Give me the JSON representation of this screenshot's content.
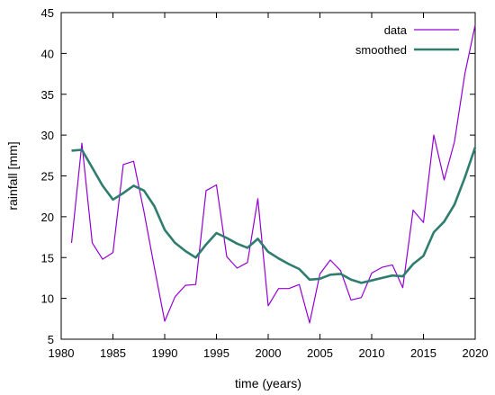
{
  "chart_data": {
    "type": "line",
    "title": "",
    "xlabel": "time (years)",
    "ylabel": "rainfall [mm]",
    "xlim": [
      1980,
      2020
    ],
    "ylim": [
      5,
      45
    ],
    "xticks": [
      1980,
      1985,
      1990,
      1995,
      2000,
      2005,
      2010,
      2015,
      2020
    ],
    "yticks": [
      5,
      10,
      15,
      20,
      25,
      30,
      35,
      40,
      45
    ],
    "grid": false,
    "legend_position": "top-right",
    "x": [
      1981,
      1982,
      1983,
      1984,
      1985,
      1986,
      1987,
      1988,
      1989,
      1990,
      1991,
      1992,
      1993,
      1994,
      1995,
      1996,
      1997,
      1998,
      1999,
      2000,
      2001,
      2002,
      2003,
      2004,
      2005,
      2006,
      2007,
      2008,
      2009,
      2010,
      2011,
      2012,
      2013,
      2014,
      2015,
      2016,
      2017,
      2018,
      2019,
      2020
    ],
    "series": [
      {
        "name": "data",
        "color": "#9400d3",
        "values": [
          16.8,
          29.0,
          16.8,
          14.8,
          15.6,
          26.4,
          26.8,
          20.6,
          13.8,
          7.2,
          10.2,
          11.6,
          11.7,
          23.2,
          23.9,
          15.1,
          13.7,
          14.4,
          22.2,
          9.1,
          11.2,
          11.2,
          11.7,
          7.0,
          13.0,
          14.7,
          13.4,
          9.8,
          10.1,
          13.1,
          13.8,
          14.1,
          11.3,
          20.8,
          19.3,
          30.0,
          24.5,
          29.2,
          37.5,
          43.5
        ]
      },
      {
        "name": "smoothed",
        "color": "#2e7d6e",
        "values": [
          28.1,
          28.2,
          26.0,
          23.8,
          22.1,
          22.9,
          23.8,
          23.2,
          21.3,
          18.4,
          16.8,
          15.8,
          15.0,
          16.6,
          18.0,
          17.4,
          16.7,
          16.2,
          17.3,
          15.7,
          14.9,
          14.2,
          13.6,
          12.3,
          12.4,
          12.9,
          13.0,
          12.3,
          11.9,
          12.2,
          12.5,
          12.8,
          12.7,
          14.2,
          15.2,
          18.1,
          19.4,
          21.5,
          24.8,
          28.5
        ]
      }
    ]
  }
}
